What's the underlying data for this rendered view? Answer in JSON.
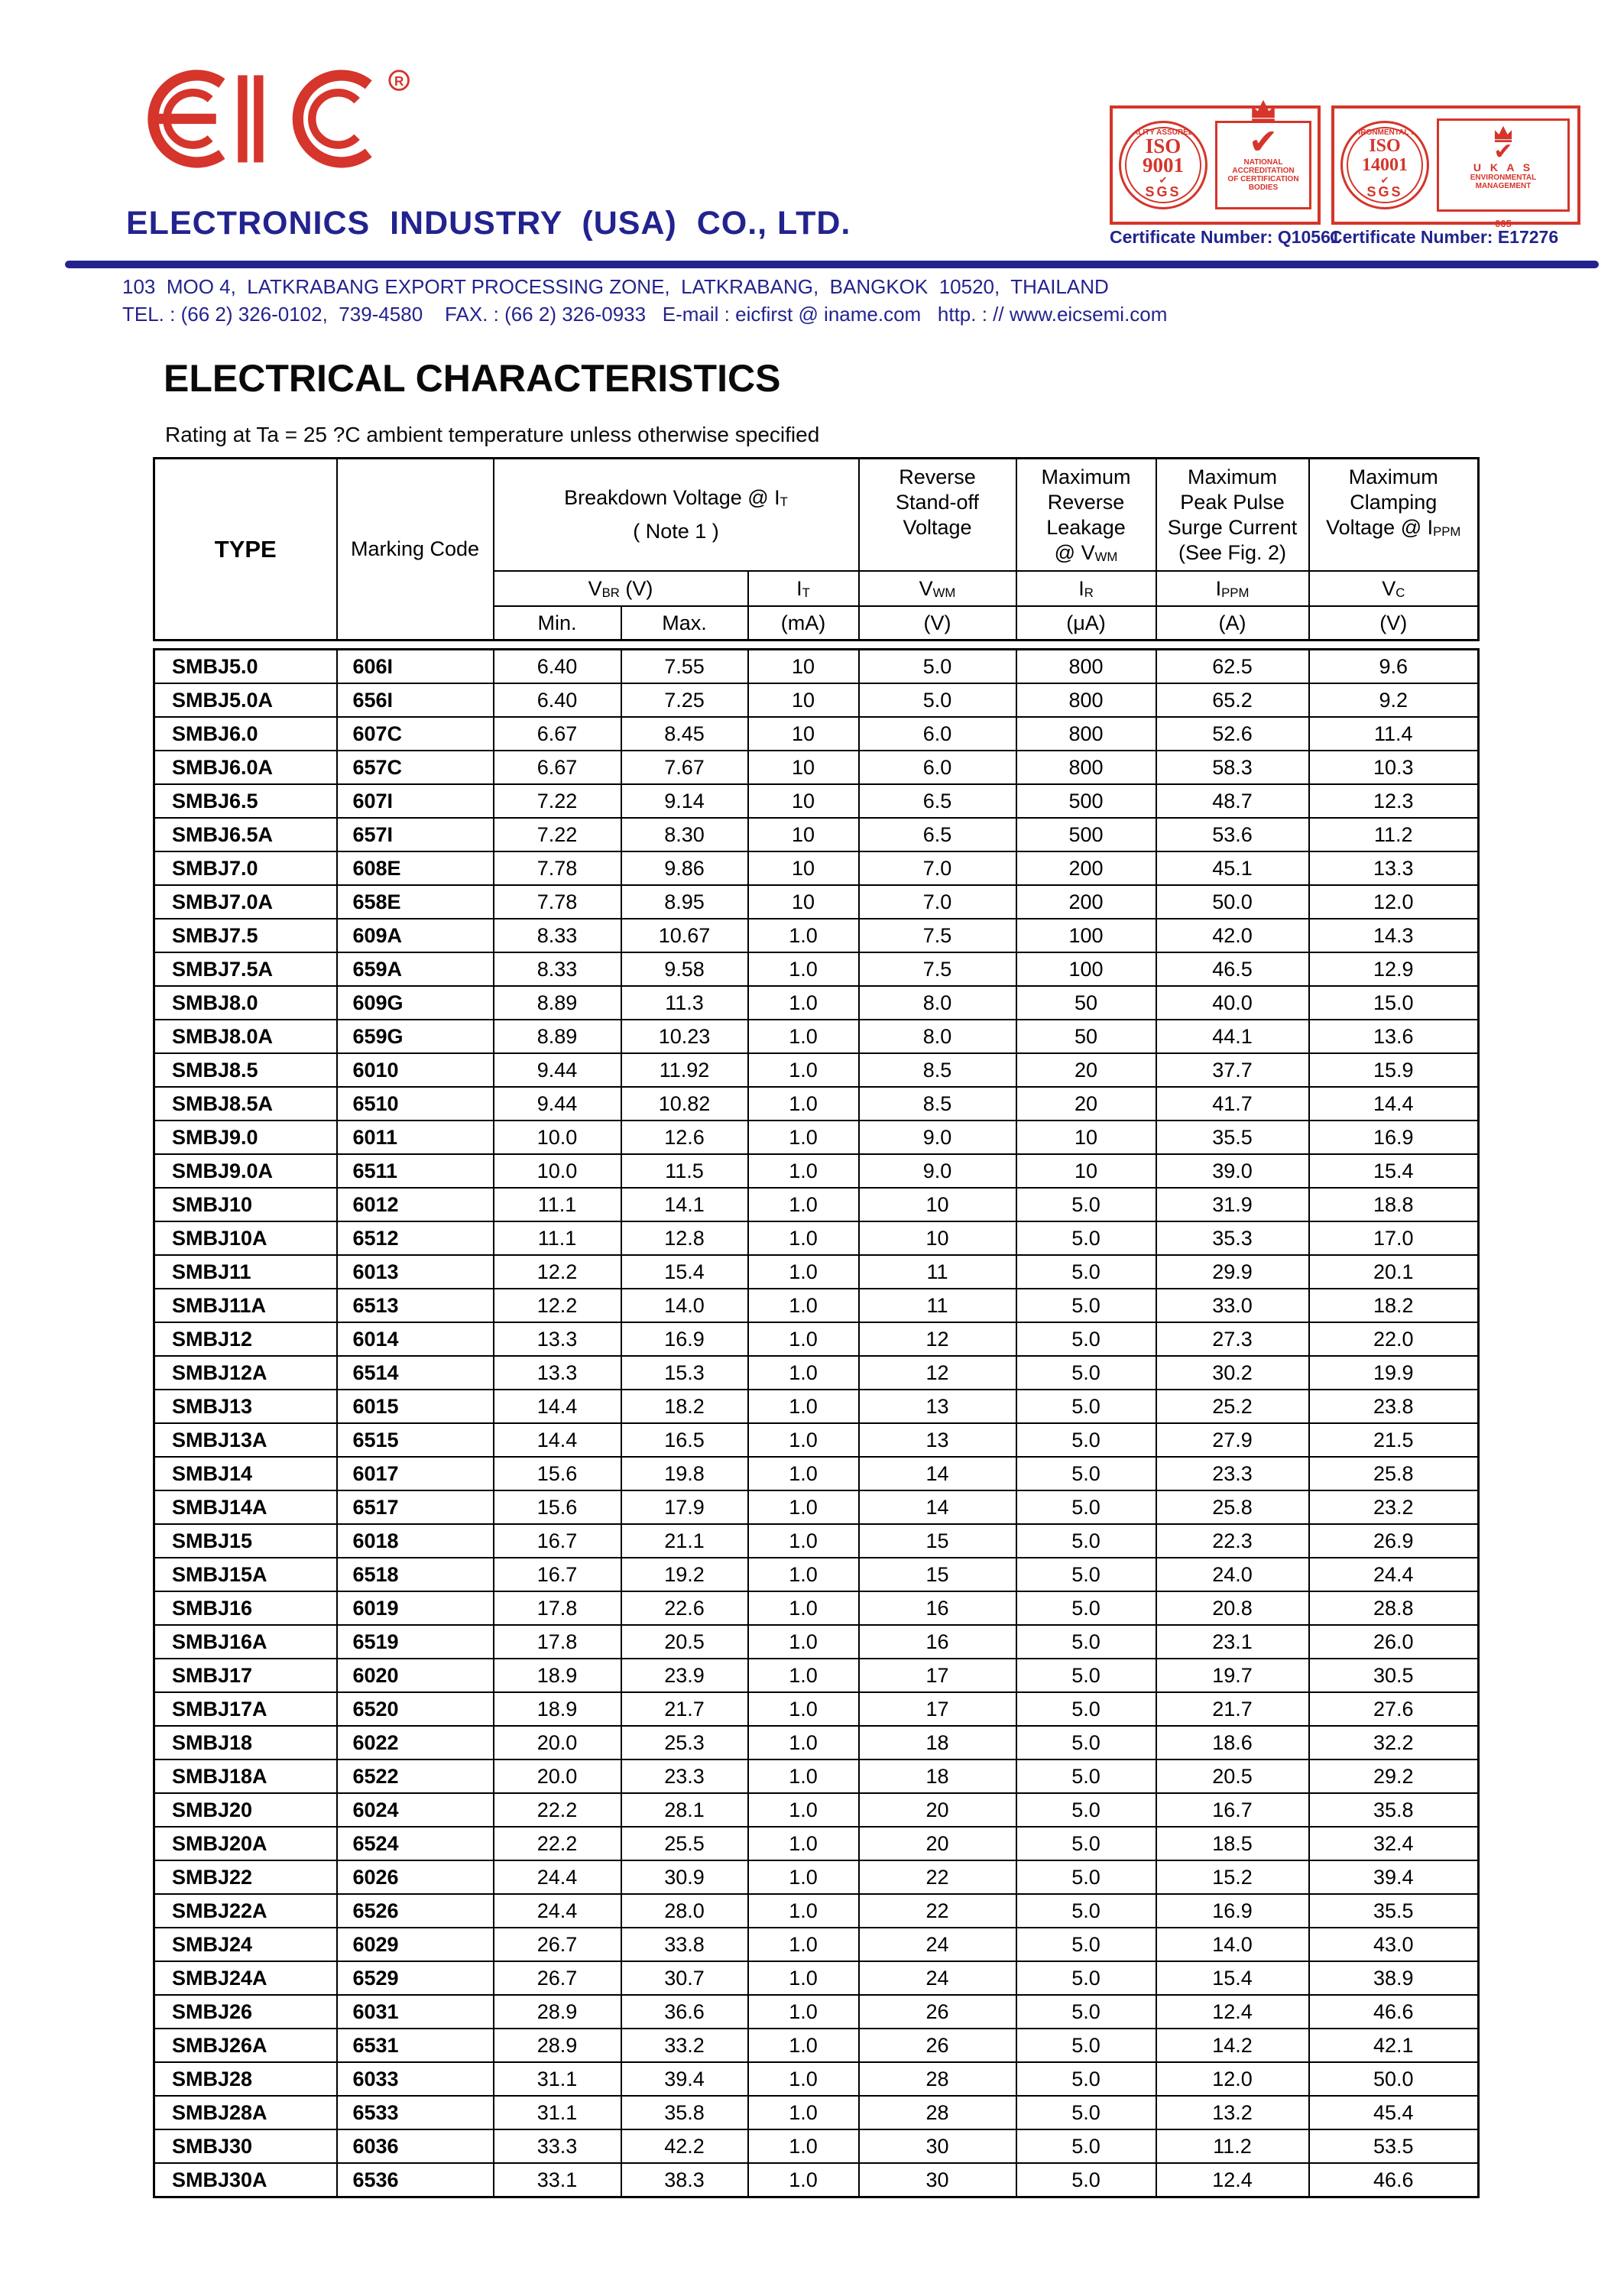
{
  "logo": {
    "text": "EIC",
    "reg": "®"
  },
  "header": {
    "company_name": "ELECTRONICS  INDUSTRY  (USA)  CO., LTD.",
    "address_line1": "103  MOO 4,  LATKRABANG EXPORT PROCESSING ZONE,  LATKRABANG,  BANGKOK  10520,  THAILAND",
    "address_line2": "TEL. : (66 2) 326-0102,  739-4580    FAX. : (66 2) 326-0933   E-mail : eicfirst @ iname.com   http. : // www.eicsemi.com"
  },
  "certificates": [
    {
      "ring_text": "QUALITY ASSURED FIRM",
      "iso": "ISO",
      "number": "9001",
      "check": "✔",
      "sgs": "SGS",
      "box_lines": [
        "NATIONAL",
        "ACCREDITATION",
        "OF CERTIFICATION",
        "BODIES"
      ],
      "number_label": "Certificate Number: Q10561"
    },
    {
      "ring_text": "ENVIRONMENTAL SYSTEM",
      "iso": "ISO",
      "number": "14001",
      "check": "✔",
      "sgs": "SGS",
      "box_lines": [
        "U K A S",
        "ENVIRONMENTAL",
        "MANAGEMENT"
      ],
      "box_footer": "005",
      "number_label": "Certificate Number: E17276"
    }
  ],
  "section": {
    "title": "ELECTRICAL CHARACTERISTICS",
    "subtitle": "Rating at Ta = 25 ?C ambient temperature unless otherwise specified"
  },
  "table": {
    "column_keys": [
      "type",
      "marking_code",
      "vbr_min",
      "vbr_max",
      "it_ma",
      "vwm_v",
      "ir_ua",
      "ippm_a",
      "vc_v"
    ],
    "header": {
      "type": "TYPE",
      "marking": "Marking Code",
      "bdv_l1_base": "Breakdown Voltage @  I",
      "bdv_l1_sub": "T",
      "bdv_l2": "( Note 1 )",
      "vbr_base": "V",
      "vbr_sub": "BR",
      "vbr_unit": " (V)",
      "it_base": "I",
      "it_sub": "T",
      "min": "Min.",
      "max": "Max.",
      "ma_unit": "(mA)",
      "col6": {
        "l1": "Reverse",
        "l2": "Stand-off",
        "l3": "Voltage",
        "sym_base": "V",
        "sym_sub": "WM",
        "unit": "(V)"
      },
      "col7": {
        "l1": "Maximum",
        "l2": "Reverse",
        "l3": "Leakage",
        "l4_base": "@ V",
        "l4_sub": "WM",
        "sym_base": "I",
        "sym_sub": "R",
        "unit": "(μA)"
      },
      "col8": {
        "l1": "Maximum",
        "l2": "Peak Pulse",
        "l3": "Surge Current",
        "l4": "(See Fig. 2)",
        "sym_base": "I",
        "sym_sub": "PPM",
        "unit": "(A)"
      },
      "col9": {
        "l1": "Maximum",
        "l2": "Clamping",
        "l3_base": "Voltage @ I",
        "l3_sub": "PPM",
        "sym_base": "V",
        "sym_sub": "C",
        "unit": "(V)"
      }
    },
    "rows": [
      [
        "SMBJ5.0",
        "606I",
        "6.40",
        "7.55",
        "10",
        "5.0",
        "800",
        "62.5",
        "9.6"
      ],
      [
        "SMBJ5.0A",
        "656I",
        "6.40",
        "7.25",
        "10",
        "5.0",
        "800",
        "65.2",
        "9.2"
      ],
      [
        "SMBJ6.0",
        "607C",
        "6.67",
        "8.45",
        "10",
        "6.0",
        "800",
        "52.6",
        "11.4"
      ],
      [
        "SMBJ6.0A",
        "657C",
        "6.67",
        "7.67",
        "10",
        "6.0",
        "800",
        "58.3",
        "10.3"
      ],
      [
        "SMBJ6.5",
        "607I",
        "7.22",
        "9.14",
        "10",
        "6.5",
        "500",
        "48.7",
        "12.3"
      ],
      [
        "SMBJ6.5A",
        "657I",
        "7.22",
        "8.30",
        "10",
        "6.5",
        "500",
        "53.6",
        "11.2"
      ],
      [
        "SMBJ7.0",
        "608E",
        "7.78",
        "9.86",
        "10",
        "7.0",
        "200",
        "45.1",
        "13.3"
      ],
      [
        "SMBJ7.0A",
        "658E",
        "7.78",
        "8.95",
        "10",
        "7.0",
        "200",
        "50.0",
        "12.0"
      ],
      [
        "SMBJ7.5",
        "609A",
        "8.33",
        "10.67",
        "1.0",
        "7.5",
        "100",
        "42.0",
        "14.3"
      ],
      [
        "SMBJ7.5A",
        "659A",
        "8.33",
        "9.58",
        "1.0",
        "7.5",
        "100",
        "46.5",
        "12.9"
      ],
      [
        "SMBJ8.0",
        "609G",
        "8.89",
        "11.3",
        "1.0",
        "8.0",
        "50",
        "40.0",
        "15.0"
      ],
      [
        "SMBJ8.0A",
        "659G",
        "8.89",
        "10.23",
        "1.0",
        "8.0",
        "50",
        "44.1",
        "13.6"
      ],
      [
        "SMBJ8.5",
        "6010",
        "9.44",
        "11.92",
        "1.0",
        "8.5",
        "20",
        "37.7",
        "15.9"
      ],
      [
        "SMBJ8.5A",
        "6510",
        "9.44",
        "10.82",
        "1.0",
        "8.5",
        "20",
        "41.7",
        "14.4"
      ],
      [
        "SMBJ9.0",
        "6011",
        "10.0",
        "12.6",
        "1.0",
        "9.0",
        "10",
        "35.5",
        "16.9"
      ],
      [
        "SMBJ9.0A",
        "6511",
        "10.0",
        "11.5",
        "1.0",
        "9.0",
        "10",
        "39.0",
        "15.4"
      ],
      [
        "SMBJ10",
        "6012",
        "11.1",
        "14.1",
        "1.0",
        "10",
        "5.0",
        "31.9",
        "18.8"
      ],
      [
        "SMBJ10A",
        "6512",
        "11.1",
        "12.8",
        "1.0",
        "10",
        "5.0",
        "35.3",
        "17.0"
      ],
      [
        "SMBJ11",
        "6013",
        "12.2",
        "15.4",
        "1.0",
        "11",
        "5.0",
        "29.9",
        "20.1"
      ],
      [
        "SMBJ11A",
        "6513",
        "12.2",
        "14.0",
        "1.0",
        "11",
        "5.0",
        "33.0",
        "18.2"
      ],
      [
        "SMBJ12",
        "6014",
        "13.3",
        "16.9",
        "1.0",
        "12",
        "5.0",
        "27.3",
        "22.0"
      ],
      [
        "SMBJ12A",
        "6514",
        "13.3",
        "15.3",
        "1.0",
        "12",
        "5.0",
        "30.2",
        "19.9"
      ],
      [
        "SMBJ13",
        "6015",
        "14.4",
        "18.2",
        "1.0",
        "13",
        "5.0",
        "25.2",
        "23.8"
      ],
      [
        "SMBJ13A",
        "6515",
        "14.4",
        "16.5",
        "1.0",
        "13",
        "5.0",
        "27.9",
        "21.5"
      ],
      [
        "SMBJ14",
        "6017",
        "15.6",
        "19.8",
        "1.0",
        "14",
        "5.0",
        "23.3",
        "25.8"
      ],
      [
        "SMBJ14A",
        "6517",
        "15.6",
        "17.9",
        "1.0",
        "14",
        "5.0",
        "25.8",
        "23.2"
      ],
      [
        "SMBJ15",
        "6018",
        "16.7",
        "21.1",
        "1.0",
        "15",
        "5.0",
        "22.3",
        "26.9"
      ],
      [
        "SMBJ15A",
        "6518",
        "16.7",
        "19.2",
        "1.0",
        "15",
        "5.0",
        "24.0",
        "24.4"
      ],
      [
        "SMBJ16",
        "6019",
        "17.8",
        "22.6",
        "1.0",
        "16",
        "5.0",
        "20.8",
        "28.8"
      ],
      [
        "SMBJ16A",
        "6519",
        "17.8",
        "20.5",
        "1.0",
        "16",
        "5.0",
        "23.1",
        "26.0"
      ],
      [
        "SMBJ17",
        "6020",
        "18.9",
        "23.9",
        "1.0",
        "17",
        "5.0",
        "19.7",
        "30.5"
      ],
      [
        "SMBJ17A",
        "6520",
        "18.9",
        "21.7",
        "1.0",
        "17",
        "5.0",
        "21.7",
        "27.6"
      ],
      [
        "SMBJ18",
        "6022",
        "20.0",
        "25.3",
        "1.0",
        "18",
        "5.0",
        "18.6",
        "32.2"
      ],
      [
        "SMBJ18A",
        "6522",
        "20.0",
        "23.3",
        "1.0",
        "18",
        "5.0",
        "20.5",
        "29.2"
      ],
      [
        "SMBJ20",
        "6024",
        "22.2",
        "28.1",
        "1.0",
        "20",
        "5.0",
        "16.7",
        "35.8"
      ],
      [
        "SMBJ20A",
        "6524",
        "22.2",
        "25.5",
        "1.0",
        "20",
        "5.0",
        "18.5",
        "32.4"
      ],
      [
        "SMBJ22",
        "6026",
        "24.4",
        "30.9",
        "1.0",
        "22",
        "5.0",
        "15.2",
        "39.4"
      ],
      [
        "SMBJ22A",
        "6526",
        "24.4",
        "28.0",
        "1.0",
        "22",
        "5.0",
        "16.9",
        "35.5"
      ],
      [
        "SMBJ24",
        "6029",
        "26.7",
        "33.8",
        "1.0",
        "24",
        "5.0",
        "14.0",
        "43.0"
      ],
      [
        "SMBJ24A",
        "6529",
        "26.7",
        "30.7",
        "1.0",
        "24",
        "5.0",
        "15.4",
        "38.9"
      ],
      [
        "SMBJ26",
        "6031",
        "28.9",
        "36.6",
        "1.0",
        "26",
        "5.0",
        "12.4",
        "46.6"
      ],
      [
        "SMBJ26A",
        "6531",
        "28.9",
        "33.2",
        "1.0",
        "26",
        "5.0",
        "14.2",
        "42.1"
      ],
      [
        "SMBJ28",
        "6033",
        "31.1",
        "39.4",
        "1.0",
        "28",
        "5.0",
        "12.0",
        "50.0"
      ],
      [
        "SMBJ28A",
        "6533",
        "31.1",
        "35.8",
        "1.0",
        "28",
        "5.0",
        "13.2",
        "45.4"
      ],
      [
        "SMBJ30",
        "6036",
        "33.3",
        "42.2",
        "1.0",
        "30",
        "5.0",
        "11.2",
        "53.5"
      ],
      [
        "SMBJ30A",
        "6536",
        "33.1",
        "38.3",
        "1.0",
        "30",
        "5.0",
        "12.4",
        "46.6"
      ]
    ]
  }
}
